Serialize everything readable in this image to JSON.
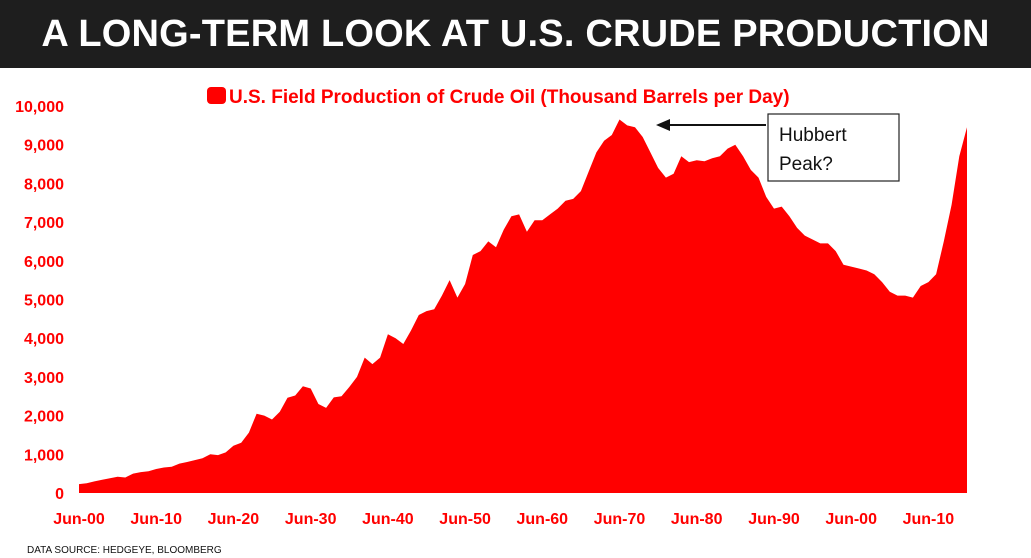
{
  "header": {
    "title": "A LONG-TERM LOOK AT U.S. CRUDE PRODUCTION"
  },
  "footer": {
    "source": "DATA SOURCE: HEDGEYE, BLOOMBERG"
  },
  "colors": {
    "series": "#ff0000",
    "banner": "#1e1e1e",
    "banner_text": "#ffffff"
  },
  "chart_data": {
    "type": "area",
    "title": "",
    "xlabel": "",
    "ylabel": "",
    "legend": {
      "position": "top-center"
    },
    "grid": false,
    "ylim": [
      0,
      10000
    ],
    "xlim": [
      1900,
      2015
    ],
    "x_tick_labels": [
      "Jun-00",
      "Jun-10",
      "Jun-20",
      "Jun-30",
      "Jun-40",
      "Jun-50",
      "Jun-60",
      "Jun-70",
      "Jun-80",
      "Jun-90",
      "Jun-00",
      "Jun-10"
    ],
    "x_tick_years": [
      1900,
      1910,
      1920,
      1930,
      1940,
      1950,
      1960,
      1970,
      1980,
      1990,
      2000,
      2010
    ],
    "y_ticks": [
      0,
      1000,
      2000,
      3000,
      4000,
      5000,
      6000,
      7000,
      8000,
      9000,
      10000
    ],
    "y_tick_labels": [
      "0",
      "1,000",
      "2,000",
      "3,000",
      "4,000",
      "5,000",
      "6,000",
      "7,000",
      "8,000",
      "9,000",
      "10,000"
    ],
    "series": [
      {
        "name": "U.S. Field Production of Crude Oil (Thousand Barrels per Day)",
        "color": "#ff0000",
        "x": [
          1900,
          1901,
          1902,
          1903,
          1904,
          1905,
          1906,
          1907,
          1908,
          1909,
          1910,
          1911,
          1912,
          1913,
          1914,
          1915,
          1916,
          1917,
          1918,
          1919,
          1920,
          1921,
          1922,
          1923,
          1924,
          1925,
          1926,
          1927,
          1928,
          1929,
          1930,
          1931,
          1932,
          1933,
          1934,
          1935,
          1936,
          1937,
          1938,
          1939,
          1940,
          1941,
          1942,
          1943,
          1944,
          1945,
          1946,
          1947,
          1948,
          1949,
          1950,
          1951,
          1952,
          1953,
          1954,
          1955,
          1956,
          1957,
          1958,
          1959,
          1960,
          1961,
          1962,
          1963,
          1964,
          1965,
          1966,
          1967,
          1968,
          1969,
          1970,
          1971,
          1972,
          1973,
          1974,
          1975,
          1976,
          1977,
          1978,
          1979,
          1980,
          1981,
          1982,
          1983,
          1984,
          1985,
          1986,
          1987,
          1988,
          1989,
          1990,
          1991,
          1992,
          1993,
          1994,
          1995,
          1996,
          1997,
          1998,
          1999,
          2000,
          2001,
          2002,
          2003,
          2004,
          2005,
          2006,
          2007,
          2008,
          2009,
          2010,
          2011,
          2012,
          2013,
          2014,
          2015
        ],
        "values": [
          230,
          250,
          300,
          340,
          380,
          420,
          400,
          500,
          540,
          560,
          620,
          660,
          680,
          760,
          800,
          850,
          900,
          1000,
          980,
          1050,
          1220,
          1300,
          1560,
          2050,
          2000,
          1900,
          2100,
          2460,
          2520,
          2760,
          2700,
          2300,
          2200,
          2470,
          2500,
          2740,
          3000,
          3500,
          3330,
          3500,
          4100,
          4000,
          3850,
          4200,
          4600,
          4700,
          4750,
          5100,
          5500,
          5050,
          5400,
          6150,
          6250,
          6500,
          6350,
          6800,
          7150,
          7200,
          6750,
          7050,
          7050,
          7200,
          7350,
          7550,
          7600,
          7800,
          8300,
          8800,
          9100,
          9250,
          9650,
          9500,
          9450,
          9200,
          8800,
          8400,
          8150,
          8250,
          8700,
          8550,
          8600,
          8570,
          8650,
          8700,
          8900,
          9000,
          8700,
          8350,
          8150,
          7650,
          7350,
          7400,
          7150,
          6850,
          6650,
          6550,
          6450,
          6450,
          6250,
          5900,
          5850,
          5800,
          5750,
          5650,
          5450,
          5200,
          5100,
          5100,
          5050,
          5350,
          5450,
          5650,
          6500,
          7450,
          8700,
          9450
        ]
      }
    ],
    "annotations": [
      {
        "text": "Hubbert Peak?",
        "points_to_year": 1970,
        "points_to_value": 9650
      }
    ]
  }
}
